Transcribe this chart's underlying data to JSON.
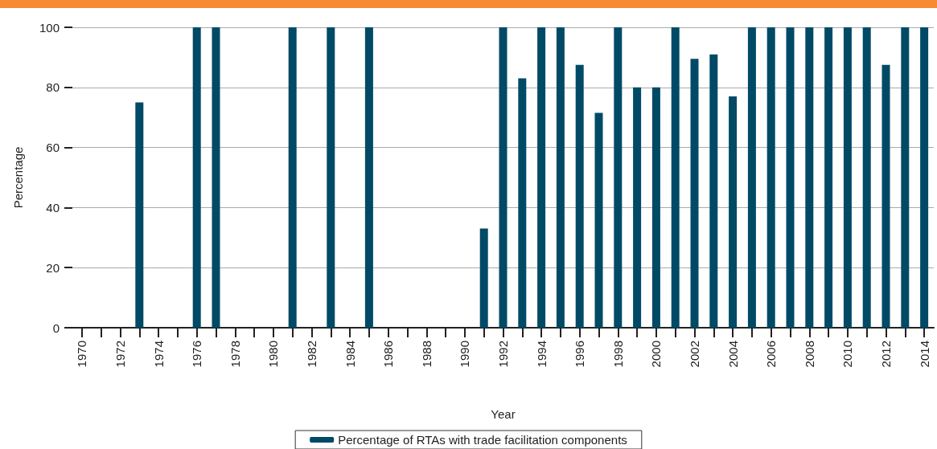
{
  "chart_data": {
    "type": "bar",
    "xlabel": "Year",
    "ylabel": "Percentage",
    "categories": [
      "1970",
      null,
      "1972",
      null,
      "1974",
      null,
      "1976",
      null,
      "1978",
      null,
      "1980",
      null,
      "1982",
      null,
      "1984",
      null,
      "1986",
      null,
      "1988",
      null,
      "1990",
      null,
      "1992",
      null,
      "1994",
      null,
      "1996",
      null,
      "1998",
      null,
      "2000",
      null,
      "2002",
      null,
      "2004",
      null,
      "2006",
      null,
      "2008",
      null,
      "2010",
      null,
      "2012",
      null,
      "2014"
    ],
    "series": [
      {
        "name": "Percentage of RTAs with trade facilitation components",
        "color": "#004a66",
        "values": [
          0,
          0,
          0,
          75,
          0,
          0,
          100,
          100,
          0,
          0,
          0,
          100,
          0,
          100,
          0,
          100,
          0,
          0,
          0,
          0,
          0,
          33,
          100,
          83,
          100,
          100,
          87.5,
          71.5,
          100,
          80,
          80,
          100,
          89.5,
          91,
          77,
          100,
          100,
          100,
          100,
          100,
          100,
          100,
          87.5,
          100,
          100
        ]
      }
    ],
    "ylim": [
      0,
      100
    ],
    "yticks": [
      0,
      20,
      40,
      60,
      80,
      100
    ],
    "grid": "y",
    "legend": "bottom"
  }
}
